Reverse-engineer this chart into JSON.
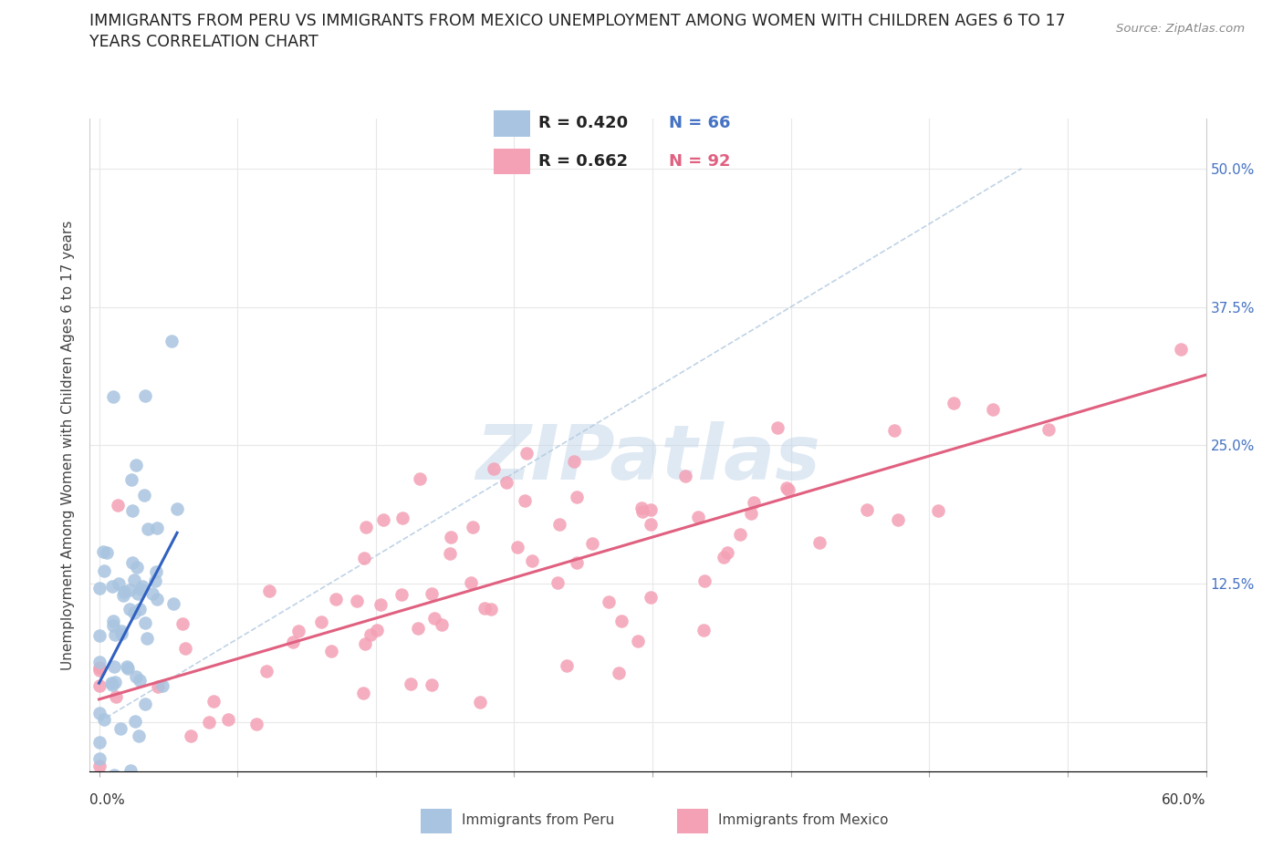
{
  "title_line1": "IMMIGRANTS FROM PERU VS IMMIGRANTS FROM MEXICO UNEMPLOYMENT AMONG WOMEN WITH CHILDREN AGES 6 TO 17",
  "title_line2": "YEARS CORRELATION CHART",
  "source": "Source: ZipAtlas.com",
  "ylabel": "Unemployment Among Women with Children Ages 6 to 17 years",
  "ytick_vals": [
    0.0,
    0.125,
    0.25,
    0.375,
    0.5
  ],
  "ytick_labels": [
    "",
    "12.5%",
    "25.0%",
    "37.5%",
    "50.0%"
  ],
  "xlim": [
    -0.005,
    0.6
  ],
  "ylim": [
    -0.045,
    0.545
  ],
  "watermark_text": "ZIPatlas",
  "peru_R": "0.420",
  "peru_N": "66",
  "mexico_R": "0.662",
  "mexico_N": "92",
  "peru_color": "#a8c4e0",
  "mexico_color": "#f4a0b5",
  "peru_line_color": "#3060c0",
  "mexico_line_color": "#e06080",
  "diag_line_color": "#b0c8e0",
  "background_color": "#ffffff",
  "grid_color": "#e8e8e8",
  "right_tick_color": "#4472c4",
  "title_fontsize": 12.5,
  "legend_fontsize": 13,
  "tick_fontsize": 11,
  "ylabel_fontsize": 11
}
